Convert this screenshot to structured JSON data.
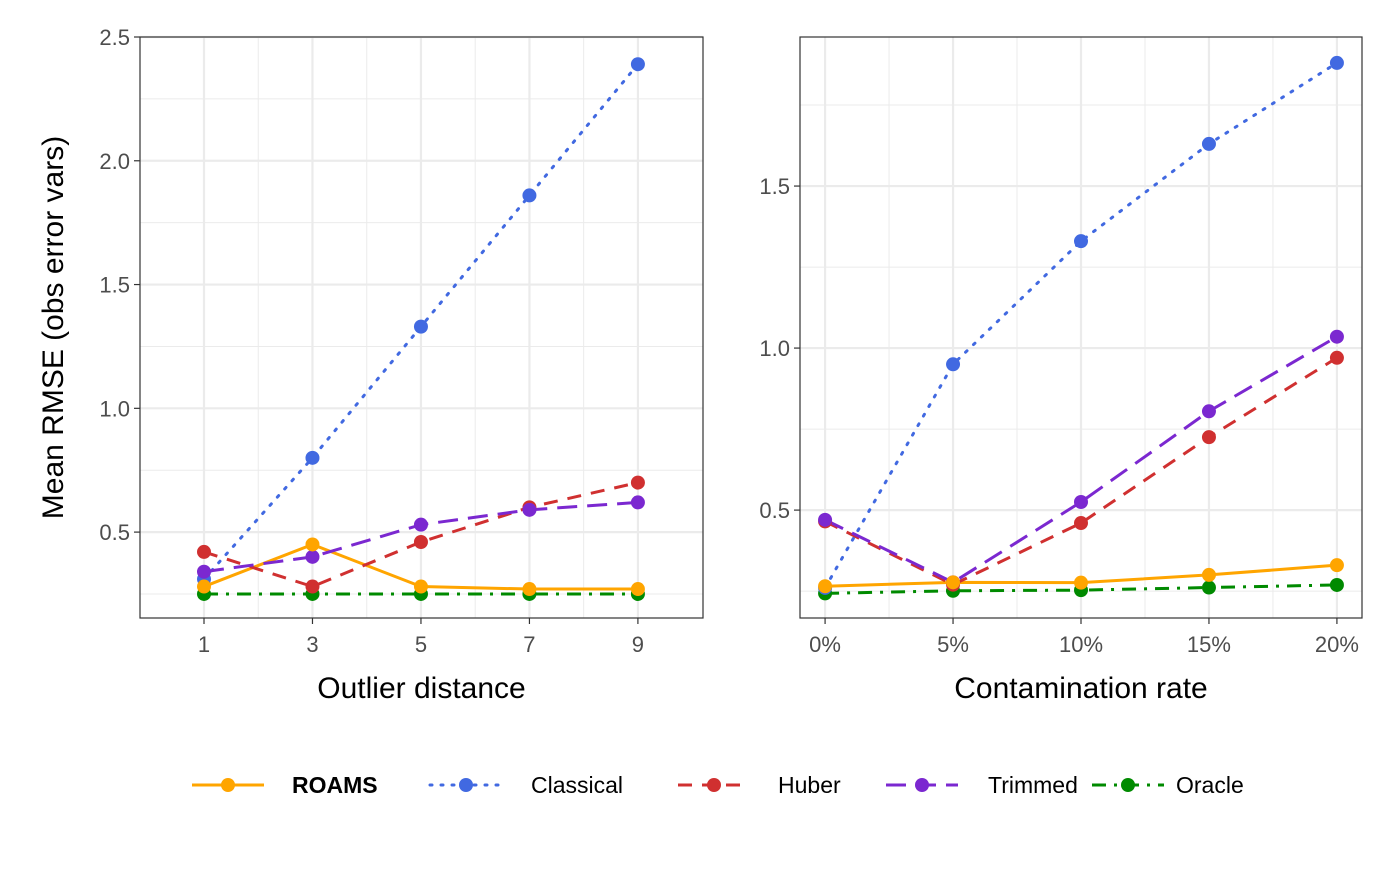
{
  "chart_data": [
    {
      "type": "line",
      "xlabel": "Outlier distance",
      "ylabel": "Mean RMSE (obs error vars)",
      "x": [
        1,
        3,
        5,
        7,
        9
      ],
      "x_tick_labels": [
        "1",
        "3",
        "5",
        "7",
        "9"
      ],
      "xlim": [
        -0.18,
        10.2
      ],
      "ylim": [
        0.153,
        2.5
      ],
      "y_ticks": [
        0.5,
        1.0,
        1.5,
        2.0,
        2.5
      ],
      "y_tick_labels": [
        "0.5",
        "1.0",
        "1.5",
        "2.0",
        "2.5"
      ],
      "grid": true,
      "series": [
        {
          "name": "ROAMS",
          "values": [
            0.28,
            0.45,
            0.28,
            0.27,
            0.27
          ]
        },
        {
          "name": "Classical",
          "values": [
            0.31,
            0.8,
            1.33,
            1.86,
            2.39
          ]
        },
        {
          "name": "Huber",
          "values": [
            0.42,
            0.28,
            0.46,
            0.6,
            0.7
          ]
        },
        {
          "name": "Trimmed",
          "values": [
            0.34,
            0.4,
            0.53,
            0.59,
            0.62
          ]
        },
        {
          "name": "Oracle",
          "values": [
            0.25,
            0.25,
            0.25,
            0.25,
            0.25
          ]
        }
      ]
    },
    {
      "type": "line",
      "xlabel": "Contamination rate",
      "ylabel": "",
      "x": [
        0,
        5,
        10,
        15,
        20
      ],
      "x_tick_labels": [
        "0%",
        "5%",
        "10%",
        "15%",
        "20%"
      ],
      "xlim": [
        -0.98,
        20.98
      ],
      "ylim": [
        0.167,
        1.96
      ],
      "y_ticks": [
        0.5,
        1.0,
        1.5
      ],
      "y_tick_labels": [
        "0.5",
        "1.0",
        "1.5"
      ],
      "grid": true,
      "series": [
        {
          "name": "ROAMS",
          "values": [
            0.265,
            0.277,
            0.276,
            0.3,
            0.33
          ]
        },
        {
          "name": "Classical",
          "values": [
            0.26,
            0.95,
            1.33,
            1.63,
            1.88
          ]
        },
        {
          "name": "Huber",
          "values": [
            0.465,
            0.27,
            0.46,
            0.725,
            0.97
          ]
        },
        {
          "name": "Trimmed",
          "values": [
            0.47,
            0.277,
            0.525,
            0.805,
            1.035
          ]
        },
        {
          "name": "Oracle",
          "values": [
            0.243,
            0.251,
            0.253,
            0.261,
            0.269
          ]
        }
      ]
    }
  ],
  "legend": {
    "placement": "bottom",
    "items": [
      {
        "name": "ROAMS",
        "color": "#FFA500",
        "dash": "solid",
        "bold": true
      },
      {
        "name": "Classical",
        "color": "#4169E1",
        "dash": "dotted",
        "bold": false
      },
      {
        "name": "Huber",
        "color": "#D03030",
        "dash": "dashed",
        "bold": false
      },
      {
        "name": "Trimmed",
        "color": "#7B28D0",
        "dash": "longdash",
        "bold": false
      },
      {
        "name": "Oracle",
        "color": "#008A00",
        "dash": "dotdash",
        "bold": false
      }
    ]
  }
}
